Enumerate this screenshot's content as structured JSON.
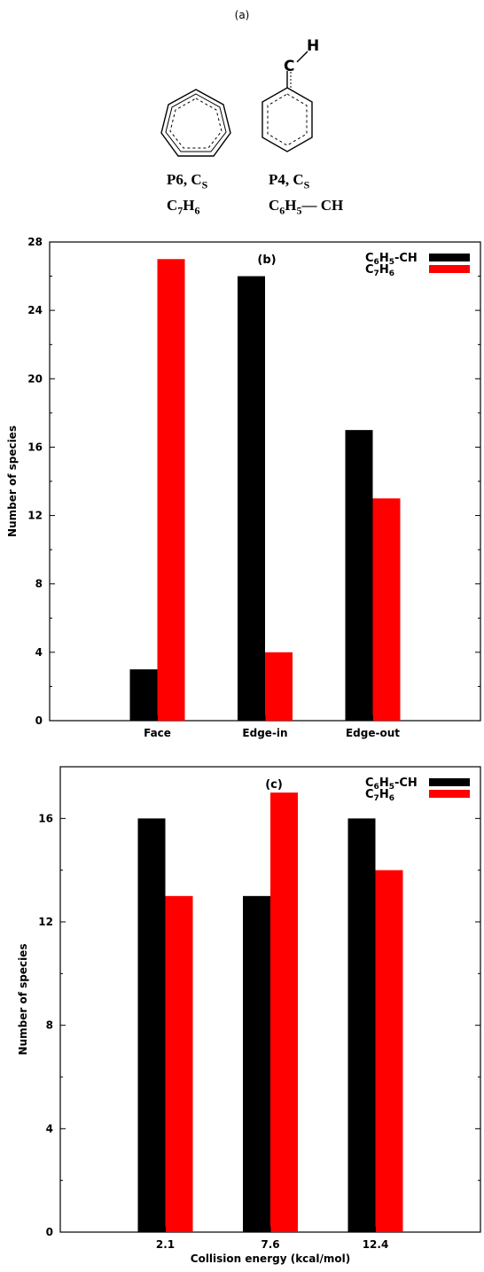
{
  "panel_a": {
    "tag": "(a)",
    "molecules": [
      {
        "name": "P6, C",
        "sym_sub": "S",
        "formula_main": "C",
        "formula_parts": [
          "C",
          "7",
          "H",
          "6"
        ],
        "formula_text": "C7H6",
        "h_label": ""
      },
      {
        "name": "P4, C",
        "sym_sub": "S",
        "formula_parts": [
          "C",
          "6",
          "H",
          "5"
        ],
        "formula_suffix": "— CH",
        "formula_text": "C6H5— CH",
        "top_atom_c": "C",
        "top_atom_h": "H"
      }
    ]
  },
  "colors": {
    "series1": "#000000",
    "series2": "#ff0000"
  },
  "chart_data": [
    {
      "panel": "(b)",
      "type": "bar",
      "categories": [
        "Face",
        "Edge-in",
        "Edge-out"
      ],
      "series": [
        {
          "name": "C6H5-CH",
          "name_parts": [
            "C",
            "6",
            "H",
            "5",
            "-CH"
          ],
          "values": [
            3,
            26,
            17
          ]
        },
        {
          "name": "C7H6",
          "name_parts": [
            "C",
            "7",
            "H",
            "6",
            ""
          ],
          "values": [
            27,
            4,
            13
          ]
        }
      ],
      "xlabel": "",
      "ylabel": "Number of species",
      "ylim": [
        0,
        28
      ],
      "yticks": [
        0,
        4,
        8,
        12,
        16,
        20,
        24,
        28
      ],
      "legend": "top-right"
    },
    {
      "panel": "(c)",
      "type": "bar",
      "categories": [
        "2.1",
        "7.6",
        "12.4"
      ],
      "series": [
        {
          "name": "C6H5-CH",
          "name_parts": [
            "C",
            "6",
            "H",
            "5",
            "-CH"
          ],
          "values": [
            16,
            13,
            16
          ]
        },
        {
          "name": "C7H6",
          "name_parts": [
            "C",
            "7",
            "H",
            "6",
            ""
          ],
          "values": [
            13,
            17,
            14
          ]
        }
      ],
      "xlabel": "Collision energy (kcal/mol)",
      "ylabel": "Number of species",
      "ylim": [
        0,
        18
      ],
      "yticks": [
        0,
        4,
        8,
        12,
        16
      ],
      "legend": "top-right"
    }
  ]
}
